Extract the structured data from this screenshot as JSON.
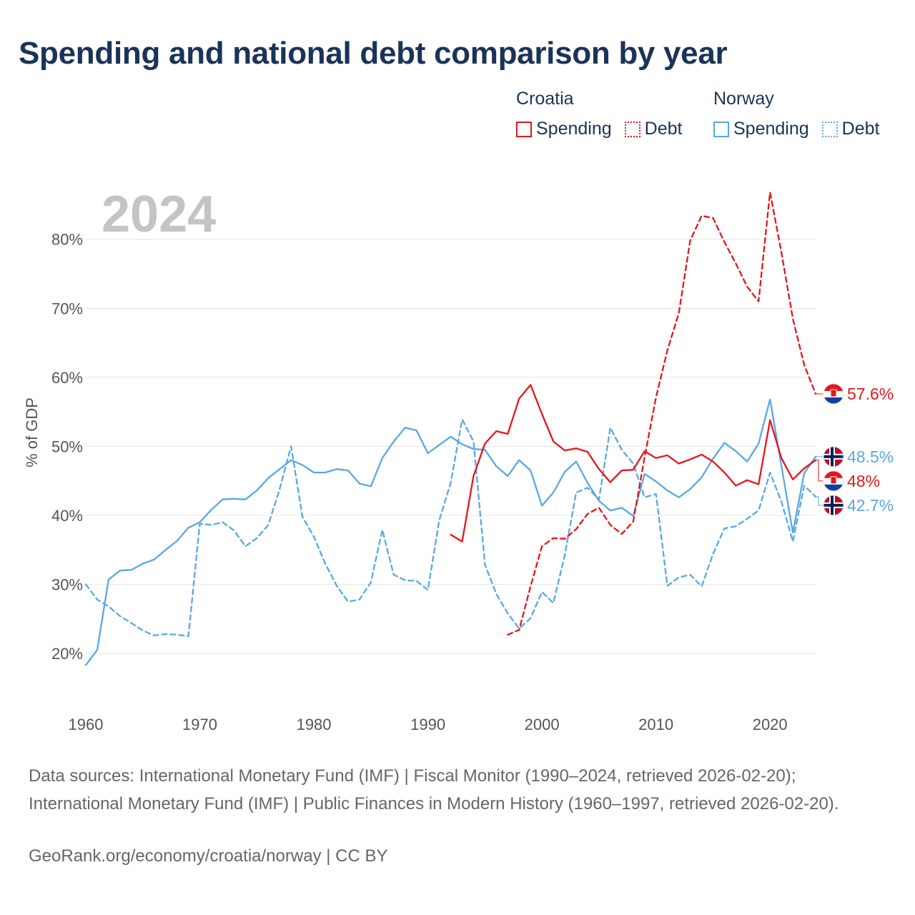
{
  "title": "Spending and national debt comparison by year",
  "legend": {
    "groups": [
      {
        "name": "Croatia",
        "color": "#e8141b",
        "items": [
          {
            "label": "Spending",
            "style": "solid"
          },
          {
            "label": "Debt",
            "style": "dotted"
          }
        ]
      },
      {
        "name": "Norway",
        "color": "#5aa7e6",
        "items": [
          {
            "label": "Spending",
            "style": "solid"
          },
          {
            "label": "Debt",
            "style": "dotted"
          }
        ]
      }
    ]
  },
  "chart_data": {
    "type": "line",
    "year_label": "2024",
    "ylabel": "% of GDP",
    "xlabel": "",
    "xlim": [
      1960,
      2024
    ],
    "ylim": [
      16,
      88
    ],
    "x_ticks": [
      1960,
      1970,
      1980,
      1990,
      2000,
      2010,
      2020
    ],
    "y_ticks": [
      20,
      30,
      40,
      50,
      60,
      70,
      80
    ],
    "y_tick_labels": [
      "20%",
      "30%",
      "40%",
      "50%",
      "60%",
      "70%",
      "80%"
    ],
    "grid": true,
    "series": [
      {
        "name": "Norway Spending",
        "country": "Norway",
        "metric": "Spending",
        "color": "#5aa7e6",
        "dash": "solid",
        "start": 1960,
        "values": [
          18.3,
          20.5,
          30.7,
          32.0,
          32.1,
          33.0,
          33.6,
          35.0,
          36.3,
          38.2,
          39.0,
          40.8,
          42.3,
          42.4,
          42.3,
          43.6,
          45.4,
          46.7,
          48.0,
          47.3,
          46.2,
          46.2,
          46.7,
          46.5,
          44.6,
          44.2,
          48.3,
          50.7,
          52.7,
          52.3,
          49.0,
          50.2,
          51.4,
          50.3,
          49.6,
          49.5,
          47.1,
          45.7,
          48.0,
          46.5,
          41.4,
          43.3,
          46.3,
          47.8,
          44.7,
          42.1,
          40.7,
          41.1,
          39.9,
          46.0,
          44.9,
          43.6,
          42.6,
          43.8,
          45.5,
          48.2,
          50.5,
          49.3,
          47.8,
          50.4,
          56.8,
          47.2,
          37.5,
          46.1,
          48.5
        ],
        "end_label": "48.5%",
        "end_value": 48.5
      },
      {
        "name": "Norway Debt",
        "country": "Norway",
        "metric": "Debt",
        "color": "#5aa7e6",
        "dash": "dashed",
        "start": 1960,
        "values": [
          30.0,
          27.8,
          26.8,
          25.4,
          24.4,
          23.3,
          22.6,
          22.8,
          22.7,
          22.5,
          38.8,
          38.6,
          39.0,
          37.8,
          35.5,
          36.7,
          38.6,
          43.8,
          50.0,
          39.8,
          36.9,
          33.0,
          29.8,
          27.5,
          27.8,
          30.3,
          37.9,
          31.4,
          30.6,
          30.5,
          29.2,
          39.3,
          44.7,
          53.9,
          50.7,
          32.9,
          28.6,
          25.8,
          23.6,
          25.1,
          28.9,
          27.3,
          34.2,
          43.3,
          44.0,
          42.3,
          52.7,
          49.5,
          47.5,
          42.6,
          43.1,
          29.8,
          31.0,
          31.4,
          29.7,
          34.4,
          38.1,
          38.4,
          39.5,
          40.7,
          46.2,
          42.0,
          36.2,
          44.3,
          42.7
        ],
        "end_label": "42.7%",
        "end_value": 42.7
      },
      {
        "name": "Croatia Spending",
        "country": "Croatia",
        "metric": "Spending",
        "color": "#e8141b",
        "dash": "solid",
        "start": 1992,
        "values": [
          37.2,
          36.2,
          45.7,
          50.4,
          52.2,
          51.8,
          56.9,
          58.9,
          54.7,
          50.7,
          49.4,
          49.7,
          49.2,
          46.7,
          44.8,
          46.5,
          46.6,
          49.3,
          48.3,
          48.7,
          47.5,
          48.1,
          48.8,
          47.8,
          46.2,
          44.3,
          45.1,
          44.5,
          53.8,
          48.3,
          45.2,
          46.8,
          48.0
        ],
        "end_label": "48%",
        "end_value": 48.0
      },
      {
        "name": "Croatia Debt",
        "country": "Croatia",
        "metric": "Debt",
        "color": "#e8141b",
        "dash": "dashed",
        "start": 1997,
        "values": [
          22.7,
          23.4,
          29.7,
          35.5,
          36.7,
          36.6,
          38.0,
          40.2,
          41.1,
          38.6,
          37.3,
          39.1,
          48.4,
          57.1,
          63.9,
          69.3,
          79.8,
          83.4,
          83.1,
          79.6,
          76.5,
          73.1,
          71.0,
          86.8,
          78.1,
          68.5,
          61.8,
          57.6
        ],
        "end_label": "57.6%",
        "end_value": 57.6
      }
    ]
  },
  "footer": {
    "sources": "Data sources: International Monetary Fund (IMF) | Fiscal Monitor (1990–2024, retrieved 2026-02-20); International Monetary Fund (IMF) | Public Finances in Modern History (1960–1997, retrieved 2026-02-20).",
    "credit": "GeoRank.org/economy/croatia/norway | CC BY"
  }
}
